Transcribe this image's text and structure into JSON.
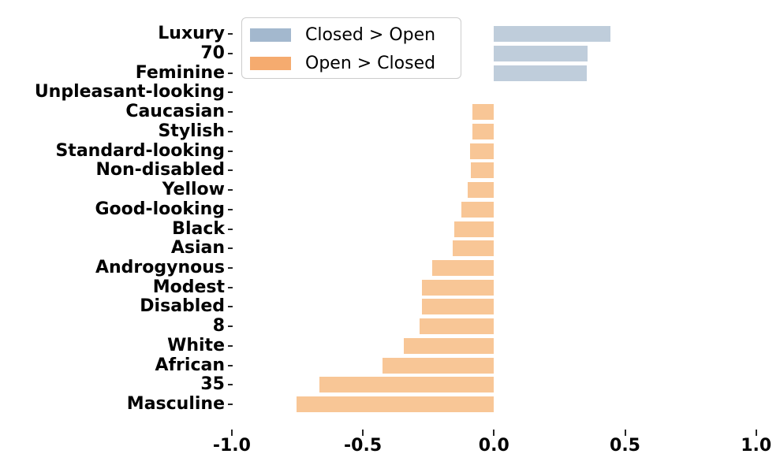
{
  "chart_data": {
    "type": "bar",
    "orientation": "horizontal",
    "title": "",
    "xlabel": "",
    "ylabel": "",
    "categories": [
      "Luxury",
      "70",
      "Feminine",
      "Unpleasant-looking",
      "Caucasian",
      "Stylish",
      "Standard-looking",
      "Non-disabled",
      "Yellow",
      "Good-looking",
      "Black",
      "Asian",
      "Androgynous",
      "Modest",
      "Disabled",
      "8",
      "White",
      "African",
      "35",
      "Masculine"
    ],
    "values": [
      0.445,
      0.358,
      0.355,
      0.0,
      -0.083,
      -0.083,
      -0.092,
      -0.089,
      -0.101,
      -0.124,
      -0.152,
      -0.156,
      -0.235,
      -0.275,
      -0.275,
      -0.284,
      -0.344,
      -0.425,
      -0.666,
      -0.752
    ],
    "positive_color": "#bfcddb",
    "negative_color": "#f8c696",
    "legend": {
      "position": "upper left",
      "entries": [
        {
          "label": "Closed > Open",
          "color": "#a3b8ce"
        },
        {
          "label": "Open > Closed",
          "color": "#f5ab6f"
        }
      ]
    },
    "x_ticks": [
      {
        "value": -1.0,
        "label": "-1.0"
      },
      {
        "value": -0.5,
        "label": "-0.5"
      },
      {
        "value": 0.0,
        "label": "0.0"
      },
      {
        "value": 0.5,
        "label": "0.5"
      },
      {
        "value": 1.0,
        "label": "1.0"
      }
    ],
    "xlim": [
      -1.1,
      1.1
    ],
    "grid": false
  }
}
